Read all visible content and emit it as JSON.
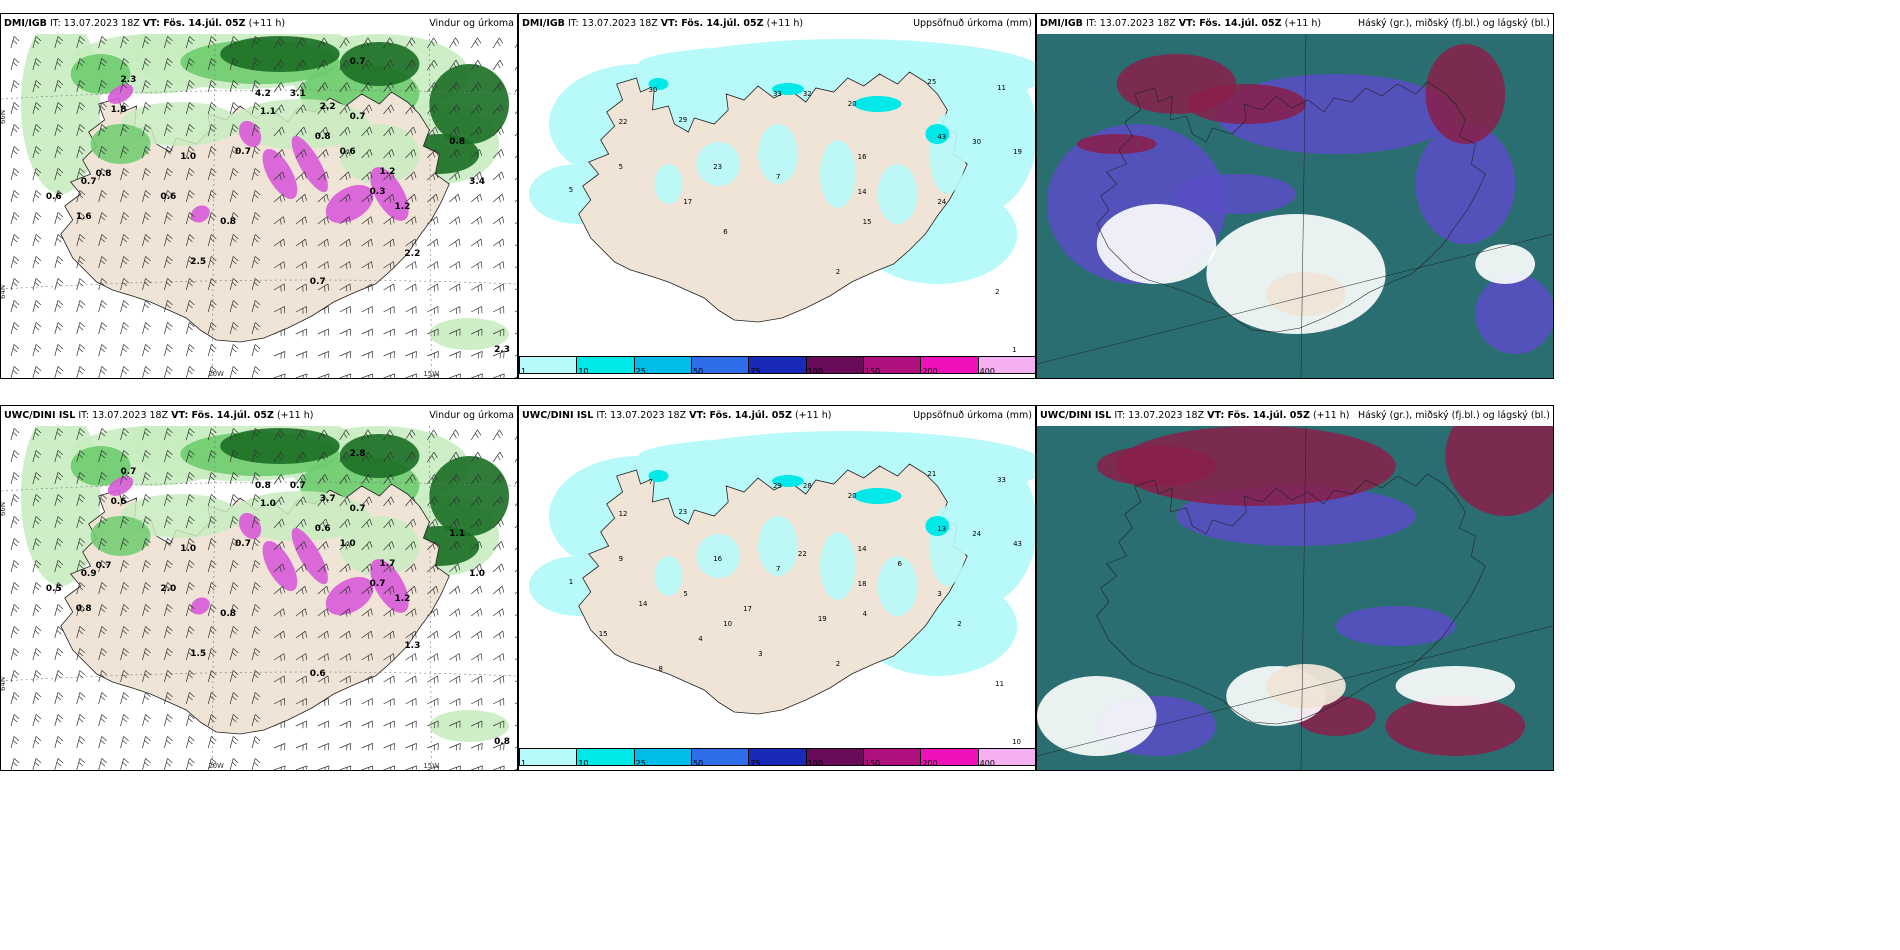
{
  "panels": [
    {
      "model": "DMI/IGB",
      "it": "IT: 13.07.2023 18Z",
      "vt": "VT: Fös. 14.júl. 05Z",
      "lead": "(+11 h)",
      "title": "Vindur og úrkoma"
    },
    {
      "model": "DMI/IGB",
      "it": "IT: 13.07.2023 18Z",
      "vt": "VT: Fös. 14.júl. 05Z",
      "lead": "(+11 h)",
      "title": "Uppsöfnuð úrkoma (mm)"
    },
    {
      "model": "DMI/IGB",
      "it": "IT: 13.07.2023 18Z",
      "vt": "VT: Fös. 14.júl. 05Z",
      "lead": "(+11 h)",
      "title": "Háský (gr.), miðský (fj.bl.) og lágský (bl.)"
    },
    {
      "model": "UWC/DINI ISL",
      "it": "IT: 13.07.2023 18Z",
      "vt": "VT: Fös. 14.júl. 05Z",
      "lead": "(+11 h)",
      "title": "Vindur og úrkoma"
    },
    {
      "model": "UWC/DINI ISL",
      "it": "IT: 13.07.2023 18Z",
      "vt": "VT: Fös. 14.júl. 05Z",
      "lead": "(+11 h)",
      "title": "Uppsöfnuð úrkoma (mm)"
    },
    {
      "model": "UWC/DINI ISL",
      "it": "IT: 13.07.2023 18Z",
      "vt": "VT: Fös. 14.júl. 05Z",
      "lead": "(+11 h)",
      "title": "Háský (gr.), miðský (fj.bl.) og lágský (bl.)"
    }
  ],
  "axes": {
    "lat66": "66N",
    "lat64": "64N",
    "lat65": "65N",
    "lon20": "20W",
    "lon15": "15W",
    "lon9": "9W"
  },
  "colorbar": {
    "ticks": [
      "1",
      "10",
      "25",
      "50",
      "75",
      "100",
      "150",
      "200",
      "400"
    ],
    "colors": [
      "#b8fafa",
      "#00e8e8",
      "#00bce8",
      "#2e6ee8",
      "#1a2ab8",
      "#6a0a5a",
      "#b0107e",
      "#f010b8",
      "#f4b0f0"
    ]
  },
  "wind_labels_top": [
    "2.3",
    "1.8",
    "0.7",
    "4.2",
    "3.1",
    "2.2",
    "0.7",
    "1.2",
    "0.8",
    "0.6",
    "1.6",
    "2.2",
    "2.5",
    "3.4",
    "0.7",
    "0.8",
    "1.0",
    "2.3",
    "0.8",
    "0.6",
    "0.7",
    "0.8",
    "0.3",
    "0.6",
    "1.2",
    "0.7",
    "1.1"
  ],
  "wind_labels_bottom": [
    "0.7",
    "0.6",
    "0.9",
    "0.8",
    "0.7",
    "3.7",
    "2.8",
    "1.7",
    "1.1",
    "0.5",
    "0.8",
    "1.3",
    "1.5",
    "1.0",
    "0.7",
    "0.6",
    "1.0",
    "0.8",
    "0.7",
    "2.0",
    "0.6",
    "0.8",
    "0.7",
    "1.0",
    "1.2",
    "0.7",
    "1.0"
  ],
  "precip_labels_top": [
    "30",
    "22",
    "29",
    "33",
    "32",
    "20",
    "25",
    "43",
    "30",
    "11",
    "19",
    "23",
    "16",
    "14",
    "24",
    "17",
    "15",
    "7",
    "5",
    "2",
    "2",
    "1",
    "5",
    "6"
  ],
  "precip_labels_bottom": [
    "7",
    "12",
    "23",
    "29",
    "28",
    "20",
    "21",
    "13",
    "24",
    "33",
    "43",
    "16",
    "14",
    "18",
    "3",
    "5",
    "4",
    "7",
    "1",
    "2",
    "11",
    "10",
    "9",
    "10",
    "22",
    "17",
    "19",
    "3",
    "4",
    "6",
    "2",
    "14",
    "15",
    "8"
  ],
  "colors": {
    "land": "#efe4d6",
    "ocean": "#ffffff",
    "green_light": "#c8ecc0",
    "green_mid": "#6ecb6e",
    "green_dark": "#1a6e24",
    "magenta": "#d85ad8",
    "cloud_teal": "#2a6e72",
    "cloud_purple": "#5a4ec8",
    "cloud_red": "#8a1e4a"
  }
}
